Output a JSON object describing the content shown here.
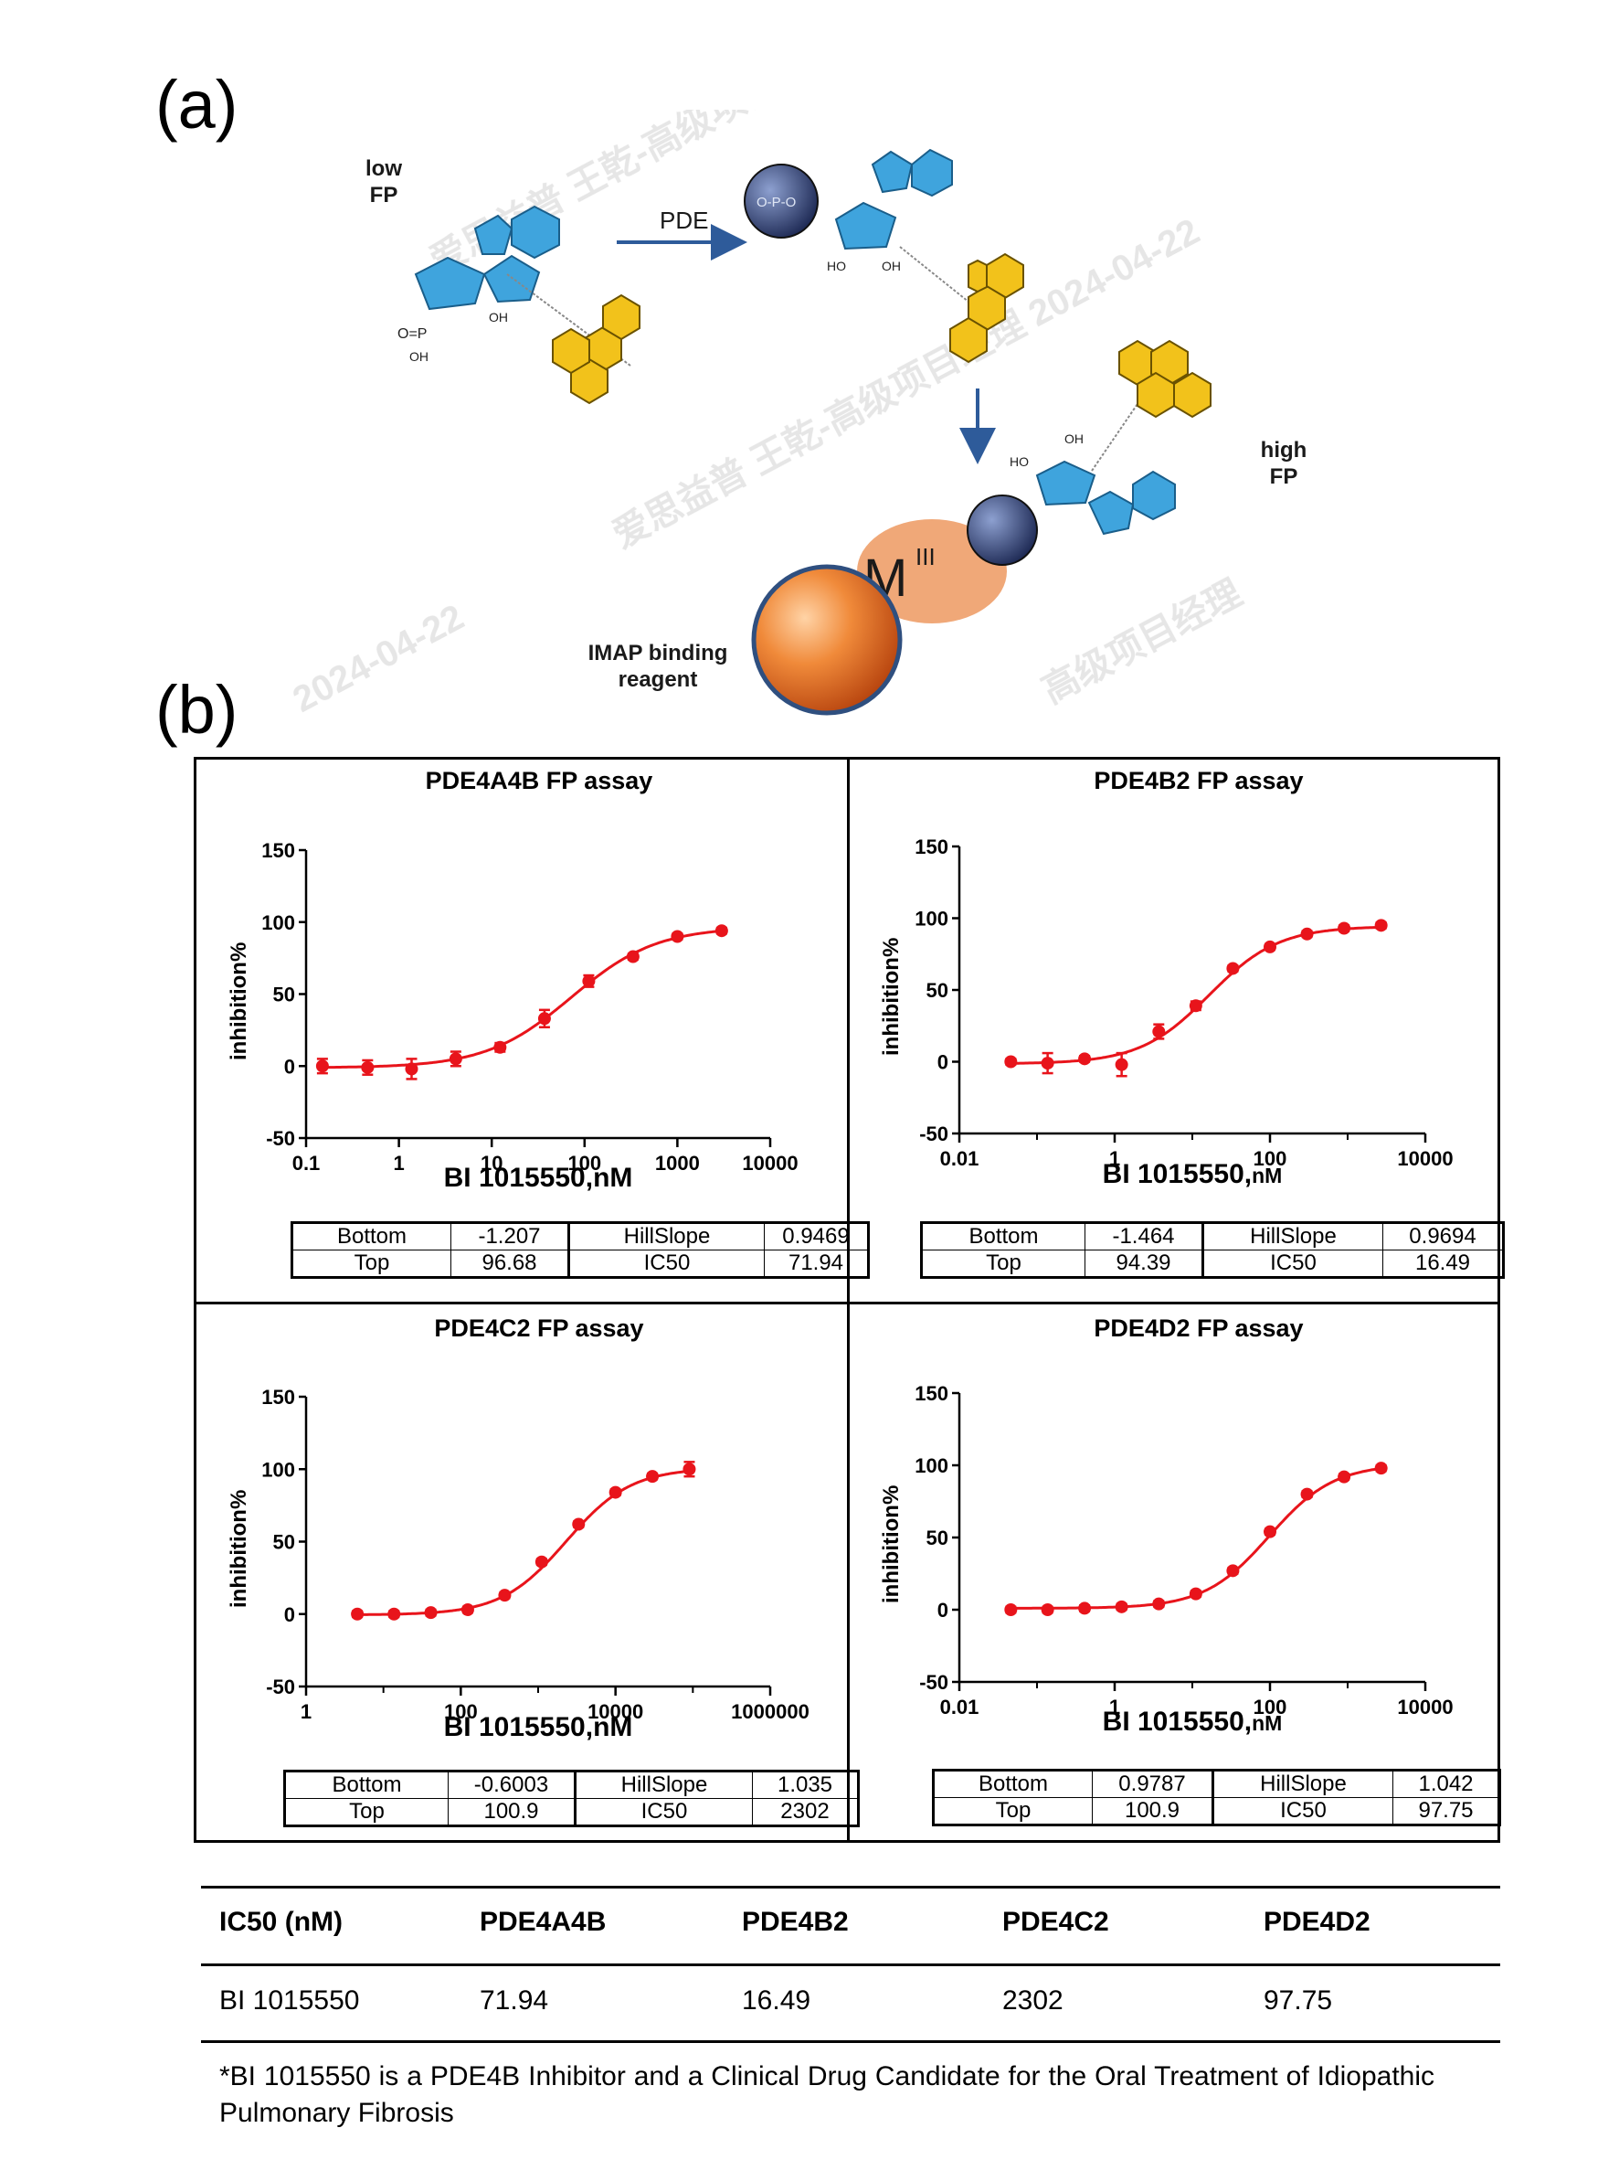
{
  "panel_labels": {
    "a": "(a)",
    "b": "(b)"
  },
  "scheme": {
    "low_fp": [
      "low",
      "FP"
    ],
    "high_fp": [
      "high",
      "FP"
    ],
    "enzyme": "PDE",
    "metal": "M",
    "metal_sup": "III",
    "reagent": [
      "IMAP binding",
      "reagent"
    ],
    "watermarks": [
      "爱思益普 王乾-高级项目经理 2024-04-22",
      "爱思益普 王乾-高级项目经理 2024-04-22",
      "2024-04-22",
      "高级项目经理"
    ],
    "colors": {
      "nucleotide": "#3fa4dd",
      "fluorophore": "#f2c21b",
      "phosphate": "#2f3f73",
      "metal": "#f0a878",
      "bead": "#e8742a",
      "arrow": "#2e5b9a"
    }
  },
  "chart_data": [
    {
      "type": "scatter",
      "title": "PDE4A4B  FP assay",
      "xlabel": "BI 1015550,nM",
      "xlabel_unit": "",
      "ylabel": "inhibition%",
      "xscale": "log",
      "xlim": [
        0.1,
        10000
      ],
      "ylim": [
        -50,
        150
      ],
      "xticks": [
        "0.1",
        "1",
        "10",
        "100",
        "1000",
        "10000"
      ],
      "yticks": [
        "-50",
        "0",
        "50",
        "100",
        "150"
      ],
      "x": [
        0.15,
        0.46,
        1.37,
        4.1,
        12.3,
        37,
        111,
        333,
        1000,
        3000
      ],
      "y": [
        0,
        -1,
        -2,
        5,
        13,
        33,
        59,
        76,
        90,
        94
      ],
      "err": [
        5,
        5,
        7,
        5,
        3,
        6,
        4,
        2,
        2,
        2
      ],
      "fit": {
        "Bottom": -1.207,
        "Top": 96.68,
        "HillSlope": 0.9469,
        "IC50": 71.94
      },
      "params": [
        [
          "Bottom",
          "-1.207",
          "HillSlope",
          "0.9469"
        ],
        [
          "Top",
          "96.68",
          "IC50",
          "71.94"
        ]
      ],
      "color": "#e8141b"
    },
    {
      "type": "scatter",
      "title": "PDE4B2 FP assay",
      "xlabel": "BI 1015550,",
      "xlabel_unit": "nM",
      "ylabel": "inhibition%",
      "xscale": "log",
      "xlim": [
        0.01,
        10000
      ],
      "ylim": [
        -50,
        150
      ],
      "xticks": [
        "0.01",
        "1",
        "100",
        "10000"
      ],
      "yticks": [
        "-50",
        "0",
        "50",
        "100",
        "150"
      ],
      "x": [
        0.046,
        0.137,
        0.41,
        1.23,
        3.7,
        11.1,
        33.3,
        100,
        300,
        900,
        2700
      ],
      "y": [
        0,
        -1,
        2,
        -2,
        21,
        39,
        65,
        80,
        89,
        93,
        95
      ],
      "err": [
        2,
        7,
        2,
        8,
        5,
        3,
        2,
        2,
        2,
        2,
        2
      ],
      "fit": {
        "Bottom": -1.464,
        "Top": 94.39,
        "HillSlope": 0.9694,
        "IC50": 16.49
      },
      "params": [
        [
          "Bottom",
          "-1.464",
          "HillSlope",
          "0.9694"
        ],
        [
          "Top",
          "94.39",
          "IC50",
          "16.49"
        ]
      ],
      "color": "#e8141b"
    },
    {
      "type": "scatter",
      "title": "PDE4C2  FP assay",
      "xlabel": "BI 1015550,nM",
      "xlabel_unit": "",
      "ylabel": "inhibition%",
      "xscale": "log",
      "xlim": [
        1,
        1000000
      ],
      "ylim": [
        -50,
        150
      ],
      "xticks": [
        "1",
        "100",
        "10000",
        "1000000"
      ],
      "yticks": [
        "-50",
        "0",
        "50",
        "100",
        "150"
      ],
      "x": [
        4.6,
        13.7,
        41,
        123,
        370,
        1111,
        3333,
        10000,
        30000,
        90000
      ],
      "y": [
        0,
        0,
        1,
        3,
        13,
        36,
        62,
        84,
        95,
        100
      ],
      "err": [
        2,
        2,
        2,
        2,
        2,
        2,
        2,
        2,
        2,
        5
      ],
      "fit": {
        "Bottom": -0.6003,
        "Top": 100.9,
        "HillSlope": 1.035,
        "IC50": 2302
      },
      "params": [
        [
          "Bottom",
          "-0.6003",
          "HillSlope",
          "1.035"
        ],
        [
          "Top",
          "100.9",
          "IC50",
          "2302"
        ]
      ],
      "color": "#e8141b"
    },
    {
      "type": "scatter",
      "title": "PDE4D2 FP assay",
      "xlabel": "BI 1015550,",
      "xlabel_unit": "nM",
      "ylabel": "inhibition%",
      "xscale": "log",
      "xlim": [
        0.01,
        10000
      ],
      "ylim": [
        -50,
        150
      ],
      "xticks": [
        "0.01",
        "1",
        "100",
        "10000"
      ],
      "yticks": [
        "-50",
        "0",
        "50",
        "100",
        "150"
      ],
      "x": [
        0.046,
        0.137,
        0.41,
        1.23,
        3.7,
        11.1,
        33.3,
        100,
        300,
        900,
        2700
      ],
      "y": [
        0,
        0,
        1,
        2,
        4,
        11,
        27,
        54,
        80,
        92,
        98
      ],
      "err": [
        2,
        2,
        2,
        2,
        2,
        2,
        2,
        2,
        2,
        2,
        2
      ],
      "fit": {
        "Bottom": 0.9787,
        "Top": 100.9,
        "HillSlope": 1.042,
        "IC50": 97.75
      },
      "params": [
        [
          "Bottom",
          "0.9787",
          "HillSlope",
          "1.042"
        ],
        [
          "Top",
          "100.9",
          "IC50",
          "97.75"
        ]
      ],
      "color": "#e8141b"
    },
    {
      "type": "table",
      "columns": [
        "IC50 (nM)",
        "PDE4A4B",
        "PDE4B2",
        "PDE4C2",
        "PDE4D2"
      ],
      "rows": [
        [
          "BI 1015550",
          "71.94",
          "16.49",
          "2302",
          "97.75"
        ]
      ]
    }
  ],
  "footnote": "*BI 1015550 is a PDE4B Inhibitor and a Clinical Drug Candidate for the Oral Treatment of Idiopathic Pulmonary Fibrosis"
}
